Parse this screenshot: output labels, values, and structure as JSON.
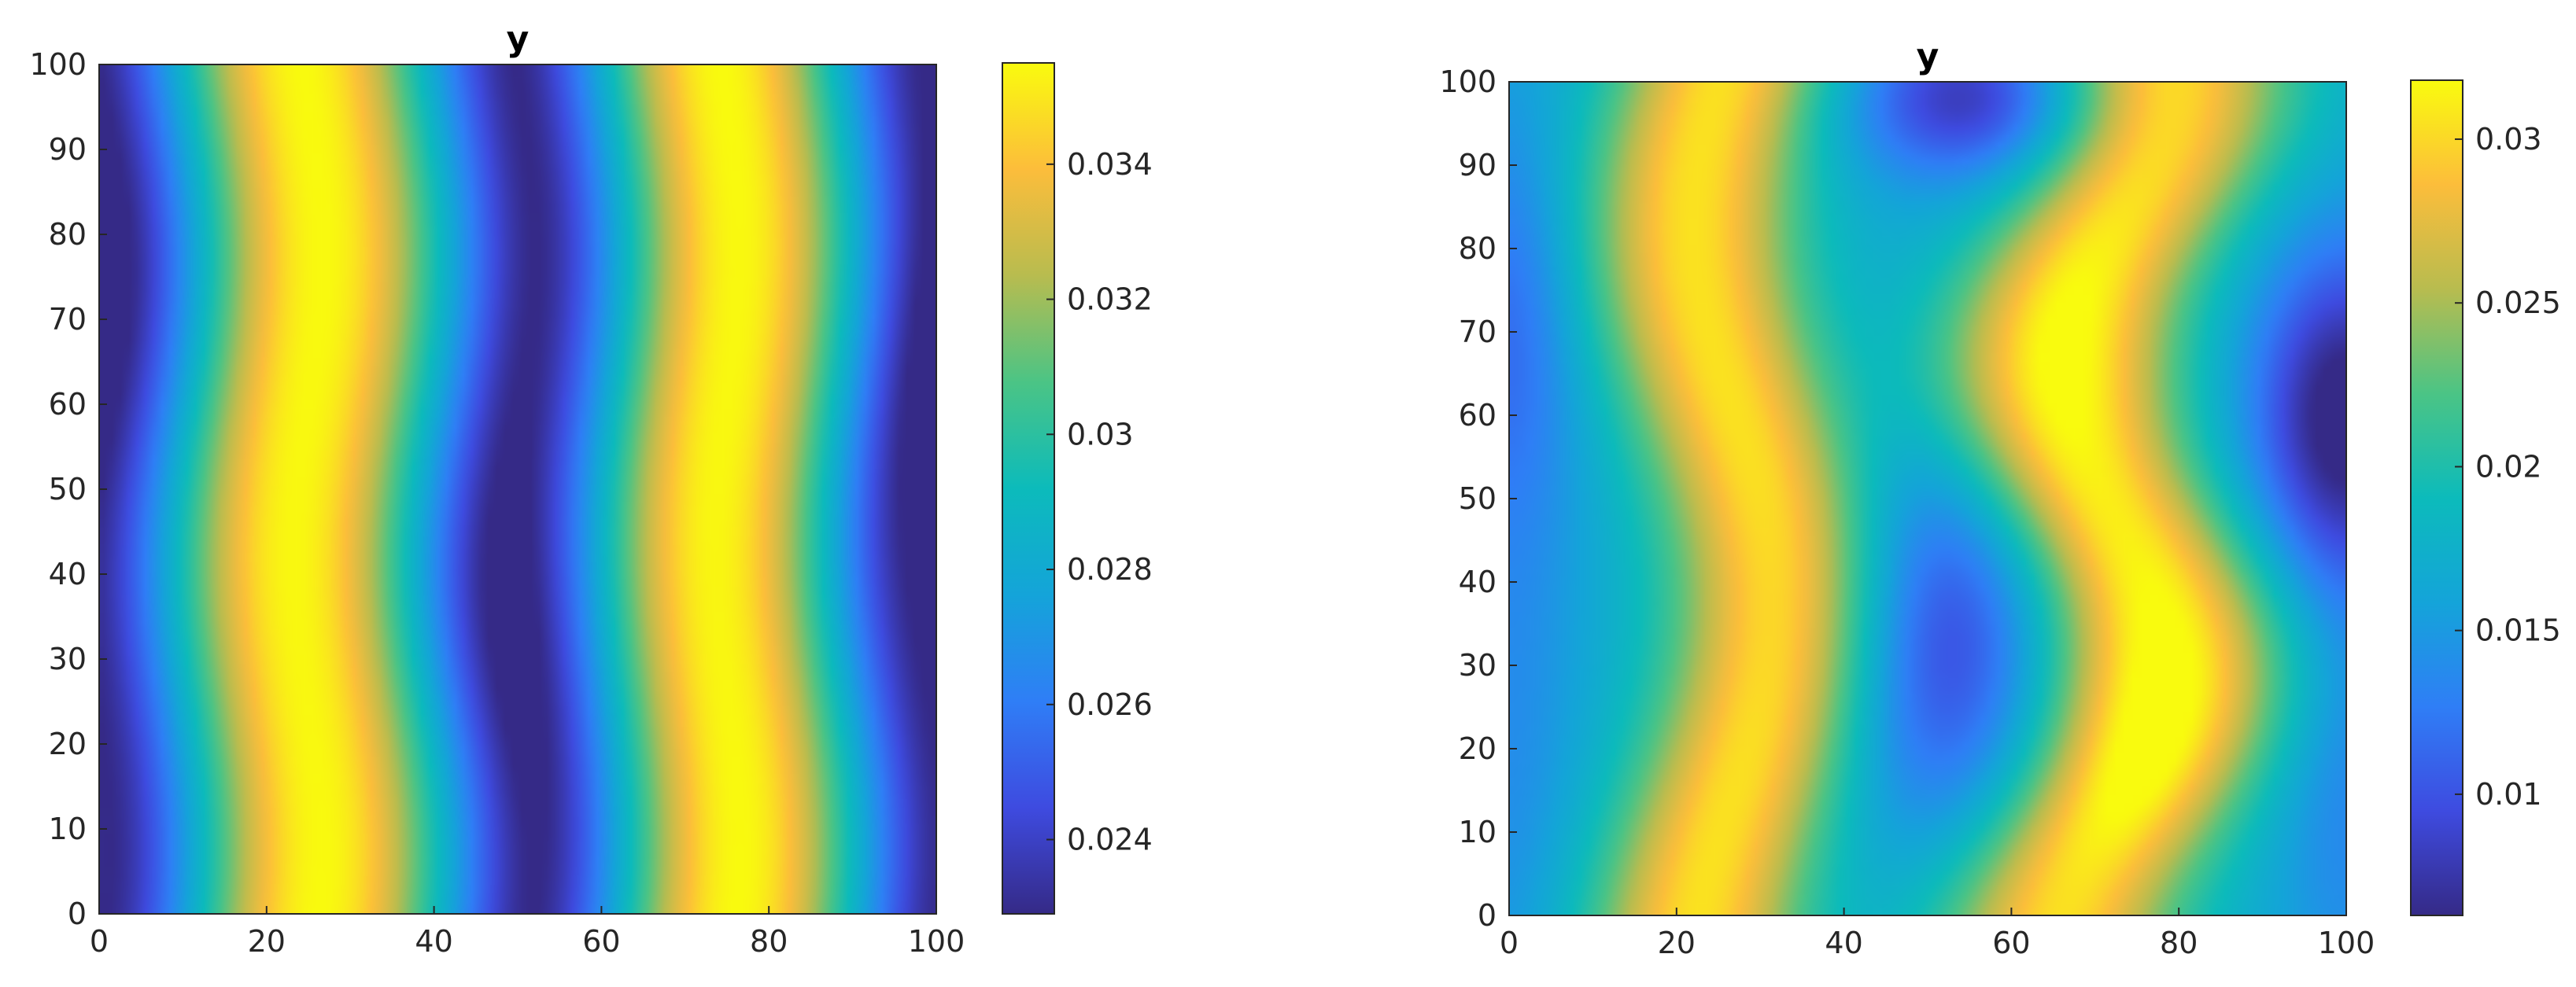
{
  "colormap": "parula",
  "chart_data": [
    {
      "type": "heatmap",
      "title": "y",
      "xlabel": "",
      "ylabel": "",
      "xlim": [
        0,
        100
      ],
      "ylim": [
        0,
        100
      ],
      "xticks": [
        "0",
        "20",
        "40",
        "60",
        "80",
        "100"
      ],
      "yticks": [
        "0",
        "10",
        "20",
        "30",
        "40",
        "50",
        "60",
        "70",
        "80",
        "90",
        "100"
      ],
      "colorbar": {
        "clim": [
          0.0229,
          0.0355
        ],
        "ticks": [
          0.024,
          0.026,
          0.028,
          0.03,
          0.032,
          0.034
        ],
        "tick_labels": [
          "0.024",
          "0.026",
          "0.028",
          "0.03",
          "0.032",
          "0.034"
        ]
      },
      "field": {
        "description_grid_x": [
          0,
          10,
          20,
          25,
          30,
          40,
          50,
          60,
          70,
          75,
          80,
          90,
          100
        ],
        "peak_columns_x": [
          25,
          75
        ],
        "trough_columns_x": [
          0,
          50,
          100
        ],
        "min_value": 0.0229,
        "max_value": 0.0355
      }
    },
    {
      "type": "heatmap",
      "title": "y",
      "xlabel": "",
      "ylabel": "",
      "xlim": [
        0,
        100
      ],
      "ylim": [
        0,
        100
      ],
      "xticks": [
        "0",
        "20",
        "40",
        "60",
        "80",
        "100"
      ],
      "yticks": [
        "0",
        "10",
        "20",
        "30",
        "40",
        "50",
        "60",
        "70",
        "80",
        "90",
        "100"
      ],
      "colorbar": {
        "clim": [
          0.0063,
          0.0318
        ],
        "ticks": [
          0.01,
          0.015,
          0.02,
          0.025,
          0.03
        ],
        "tick_labels": [
          "0.01",
          "0.015",
          "0.02",
          "0.025",
          "0.03"
        ]
      },
      "field": {
        "peak_columns_x": [
          27,
          72
        ],
        "trough_points": [
          [
            50,
            33
          ],
          [
            55,
            97
          ],
          [
            100,
            60
          ]
        ],
        "min_value": 0.0063,
        "max_value": 0.0318
      }
    }
  ]
}
